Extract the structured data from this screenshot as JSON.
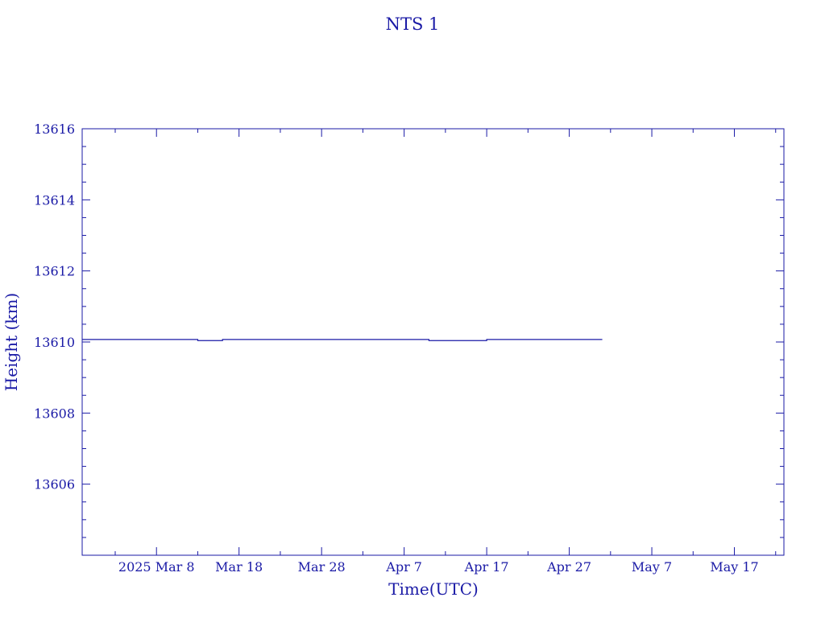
{
  "chart_data": {
    "type": "line",
    "title": "NTS 1",
    "xlabel": "Time(UTC)",
    "ylabel": "Height (km)",
    "colors": {
      "axis": "#1a1aa6",
      "line": "#1a1aa6",
      "background": "#ffffff"
    },
    "xlim": [
      "2025-02-27",
      "2025-05-23"
    ],
    "ylim": [
      13604,
      13616
    ],
    "x_ticks": [
      {
        "x": "2025-03-08",
        "label": "2025 Mar  8"
      },
      {
        "x": "2025-03-18",
        "label": "Mar 18"
      },
      {
        "x": "2025-03-28",
        "label": "Mar 28"
      },
      {
        "x": "2025-04-07",
        "label": "Apr  7"
      },
      {
        "x": "2025-04-17",
        "label": "Apr 17"
      },
      {
        "x": "2025-04-27",
        "label": "Apr 27"
      },
      {
        "x": "2025-05-07",
        "label": "May  7"
      },
      {
        "x": "2025-05-17",
        "label": "May 17"
      }
    ],
    "y_ticks": [
      {
        "y": 13606,
        "label": "13606"
      },
      {
        "y": 13608,
        "label": "13608"
      },
      {
        "y": 13610,
        "label": "13610"
      },
      {
        "y": 13612,
        "label": "13612"
      },
      {
        "y": 13614,
        "label": "13614"
      },
      {
        "y": 13616,
        "label": "13616"
      }
    ],
    "x_minor_step_days": 5,
    "y_minor_step": 0.5,
    "grid": false,
    "series": [
      {
        "points": [
          {
            "x": "2025-02-27",
            "y": 13610.07
          },
          {
            "x": "2025-03-13",
            "y": 13610.07
          },
          {
            "x": "2025-03-13",
            "y": 13610.04
          },
          {
            "x": "2025-03-16",
            "y": 13610.04
          },
          {
            "x": "2025-03-16",
            "y": 13610.07
          },
          {
            "x": "2025-04-10",
            "y": 13610.07
          },
          {
            "x": "2025-04-10",
            "y": 13610.04
          },
          {
            "x": "2025-04-17",
            "y": 13610.04
          },
          {
            "x": "2025-04-17",
            "y": 13610.07
          },
          {
            "x": "2025-05-01",
            "y": 13610.07
          }
        ]
      }
    ]
  }
}
